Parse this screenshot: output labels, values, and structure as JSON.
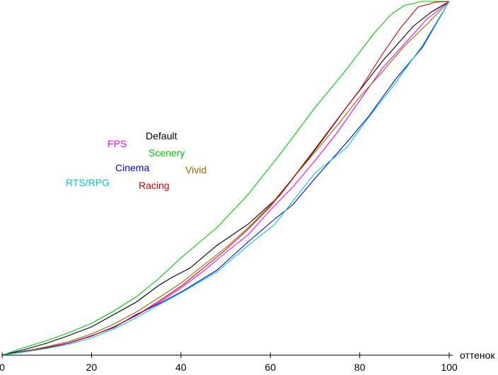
{
  "chart_data": {
    "type": "line",
    "xlabel": "оттенок",
    "ylabel": "",
    "xlim": [
      0,
      100
    ],
    "ylim": [
      0,
      100
    ],
    "xticks": [
      0,
      20,
      40,
      60,
      80,
      100
    ],
    "grid": false,
    "legend_placement": "center-left",
    "series": [
      {
        "name": "Default",
        "color": "#000000",
        "x": [
          0,
          5,
          10,
          15,
          20,
          25,
          30,
          35,
          38,
          42,
          48,
          55,
          62,
          70,
          77,
          85,
          92,
          96,
          100
        ],
        "y": [
          0,
          1.6,
          3.4,
          5.6,
          8,
          11.5,
          15,
          19.7,
          22,
          24.6,
          31,
          37,
          45,
          58,
          70,
          83,
          93,
          97,
          100
        ]
      },
      {
        "name": "FPS",
        "color": "#ff00ff",
        "x": [
          0,
          5,
          10,
          15,
          20,
          25,
          30,
          35,
          40,
          45,
          50,
          55,
          60,
          65,
          70,
          75,
          80,
          85,
          90,
          95,
          100
        ],
        "y": [
          0,
          1,
          2,
          3.4,
          5.4,
          8,
          11.2,
          14.8,
          19,
          23.7,
          29,
          34,
          41,
          47.5,
          55,
          63,
          72,
          81,
          88,
          95,
          100
        ]
      },
      {
        "name": "Scenery",
        "color": "#00cc00",
        "x": [
          0,
          5,
          10,
          15,
          20,
          25,
          30,
          35,
          40,
          48,
          55,
          62,
          70,
          77,
          83,
          87,
          90,
          94,
          100
        ],
        "y": [
          0,
          2.2,
          4.1,
          6.4,
          9,
          12.5,
          16.5,
          21.6,
          27.5,
          36,
          45.4,
          56.5,
          70,
          80.7,
          90.7,
          96.3,
          98.9,
          100,
          100
        ]
      },
      {
        "name": "Cinema",
        "color": "#0000ff",
        "x": [
          0,
          5,
          10,
          15,
          20,
          25,
          30,
          35,
          40,
          48,
          55,
          61,
          65,
          70,
          77,
          82,
          88,
          94,
          100
        ],
        "y": [
          0,
          1.2,
          2.2,
          3.5,
          5.5,
          7.8,
          11.5,
          14.5,
          17.8,
          24,
          32,
          38.5,
          42.5,
          50,
          60,
          67.5,
          78,
          87,
          100
        ]
      },
      {
        "name": "Vivid",
        "color": "#996600",
        "x": [
          0,
          5,
          10,
          15,
          20,
          25,
          30,
          35,
          40,
          45,
          50,
          55,
          60,
          65,
          70,
          75,
          80,
          85,
          90,
          95,
          100
        ],
        "y": [
          0,
          1.1,
          2.4,
          3.9,
          6,
          8.8,
          12.2,
          16.2,
          20.4,
          25.4,
          30.4,
          36,
          42.4,
          50,
          57.4,
          65,
          73,
          80,
          87.4,
          93.5,
          100
        ]
      },
      {
        "name": "Racing",
        "color": "#dd0000",
        "x": [
          0,
          5,
          10,
          15,
          20,
          25,
          30,
          35,
          40,
          45,
          50,
          55,
          60,
          65,
          70,
          75,
          80,
          85,
          89,
          93,
          97,
          100
        ],
        "y": [
          0,
          1,
          2.1,
          3.5,
          5.4,
          8,
          11.2,
          15.2,
          19.5,
          24.6,
          29.8,
          35.6,
          42,
          50,
          58.3,
          66.7,
          75,
          85,
          92.3,
          98.4,
          99.8,
          100
        ]
      },
      {
        "name": "RTS/RPG",
        "color": "#00cccc",
        "x": [
          0,
          5,
          10,
          15,
          20,
          25,
          30,
          35,
          40,
          48,
          55,
          61,
          65,
          70,
          77,
          82,
          88,
          94,
          100
        ],
        "y": [
          0,
          0.9,
          1.9,
          3.1,
          4.9,
          7.4,
          10.6,
          14.2,
          17.6,
          23.5,
          31,
          37,
          43.5,
          51.5,
          58.6,
          67.2,
          77,
          87.5,
          100
        ]
      }
    ]
  }
}
